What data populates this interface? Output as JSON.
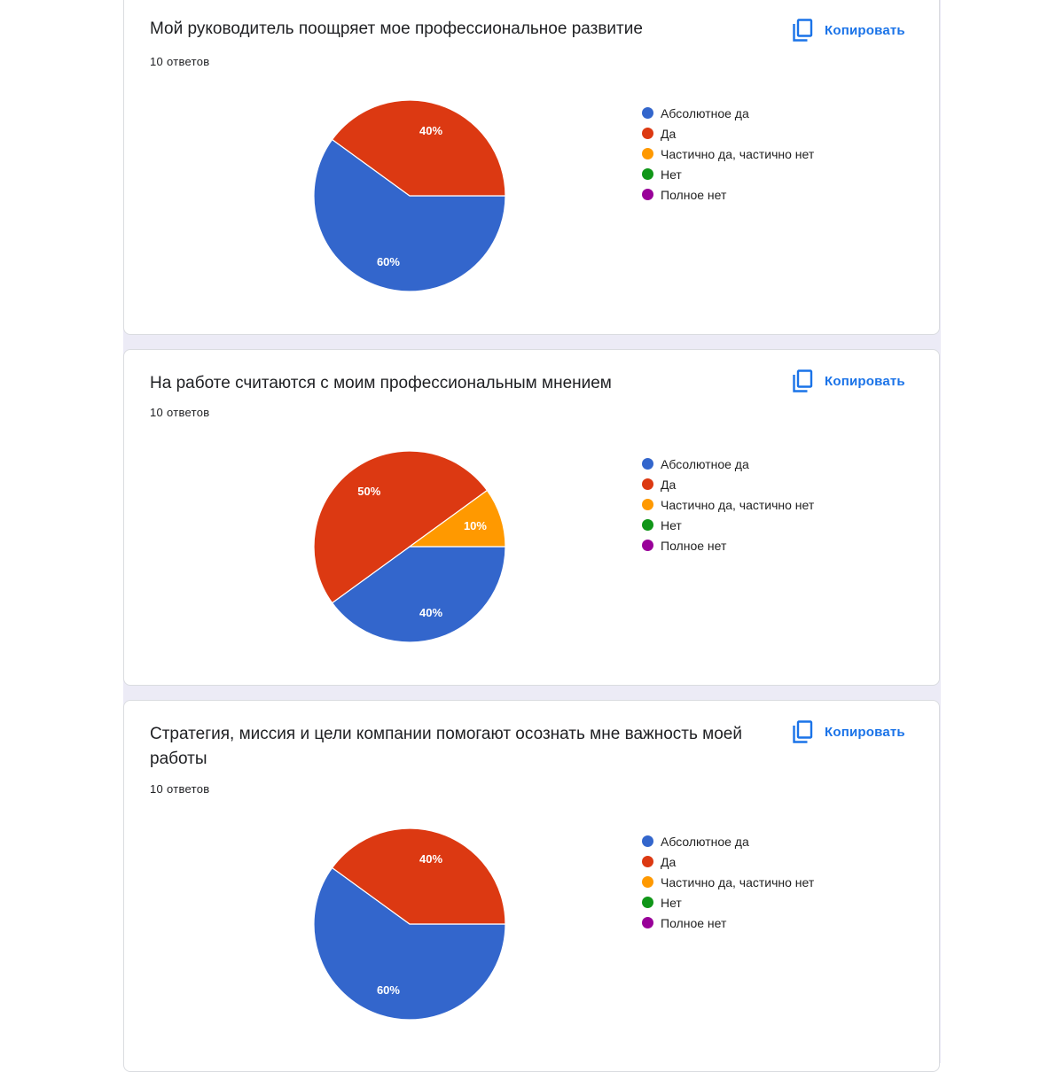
{
  "copy_label": "Копировать",
  "legend_items": [
    {
      "label": "Абсолютное да",
      "color": "#3366cc"
    },
    {
      "label": "Да",
      "color": "#dc3912"
    },
    {
      "label": "Частично да, частично нет",
      "color": "#ff9900"
    },
    {
      "label": "Нет",
      "color": "#109618"
    },
    {
      "label": "Полное нет",
      "color": "#990099"
    }
  ],
  "questions": [
    {
      "title": "Мой руководитель поощряет мое профессиональное развитие",
      "response_count": "10 ответов"
    },
    {
      "title": "На работе считаются с моим профессиональным мнением",
      "response_count": "10 ответов"
    },
    {
      "title": "Стратегия, миссия и цели компании помогают осознать мне важность моей работы",
      "response_count": "10 ответов"
    }
  ],
  "chart_data": [
    {
      "type": "pie",
      "categories": [
        "Абсолютное да",
        "Да",
        "Частично да, частично нет",
        "Нет",
        "Полное нет"
      ],
      "values": [
        60,
        40,
        0,
        0,
        0
      ],
      "labels": [
        "60%",
        "40%",
        "",
        "",
        ""
      ],
      "legend": "right"
    },
    {
      "type": "pie",
      "categories": [
        "Абсолютное да",
        "Да",
        "Частично да, частично нет",
        "Нет",
        "Полное нет"
      ],
      "values": [
        40,
        50,
        10,
        0,
        0
      ],
      "labels": [
        "40%",
        "50%",
        "10%",
        "",
        ""
      ],
      "legend": "right"
    },
    {
      "type": "pie",
      "categories": [
        "Абсолютное да",
        "Да",
        "Частично да, частично нет",
        "Нет",
        "Полное нет"
      ],
      "values": [
        60,
        40,
        0,
        0,
        0
      ],
      "labels": [
        "60%",
        "40%",
        "",
        "",
        ""
      ],
      "legend": "right"
    }
  ]
}
